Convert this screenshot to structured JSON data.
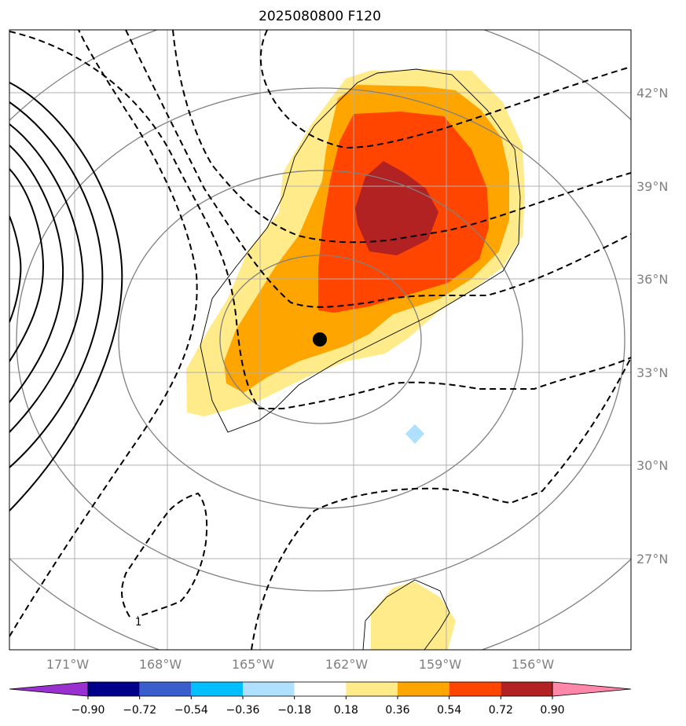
{
  "title": "2025080800 F120",
  "map": {
    "lon_labels": [
      "171°W",
      "168°W",
      "165°W",
      "162°W",
      "159°W",
      "156°W"
    ],
    "lat_labels": [
      "42°N",
      "39°N",
      "36°N",
      "33°N",
      "30°N",
      "27°N"
    ],
    "center_marker": {
      "lon": -163.0,
      "lat": 34.0
    },
    "contour_label": "1",
    "colors": {
      "grid": "#b0b0b0",
      "circle": "#808080",
      "contour": "#000000",
      "marker": "#000000"
    }
  },
  "colorbar": {
    "levels": [
      "−0.90",
      "−0.72",
      "−0.54",
      "−0.36",
      "−0.18",
      "0.18",
      "0.36",
      "0.54",
      "0.72",
      "0.90"
    ],
    "colors": [
      "#9b30d0",
      "#00008b",
      "#3a5fcd",
      "#00bfff",
      "#b0e0ff",
      "#ffffff",
      "#ffeb8a",
      "#ffa500",
      "#ff4500",
      "#b22222",
      "#ff88aa"
    ]
  }
}
